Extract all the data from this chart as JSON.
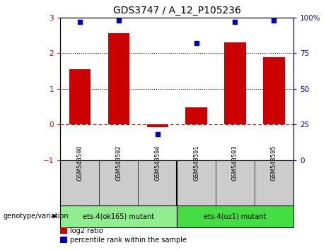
{
  "title": "GDS3747 / A_12_P105236",
  "categories": [
    "GSM543590",
    "GSM543592",
    "GSM543594",
    "GSM543591",
    "GSM543593",
    "GSM543595"
  ],
  "log2_ratio": [
    1.55,
    2.55,
    -0.08,
    0.48,
    2.3,
    1.88
  ],
  "percentile_rank": [
    97,
    98,
    18,
    82,
    97,
    98
  ],
  "ylim_left": [
    -1,
    3
  ],
  "ylim_right": [
    0,
    100
  ],
  "yticks_left": [
    -1,
    0,
    1,
    2,
    3
  ],
  "yticks_right": [
    0,
    25,
    50,
    75,
    100
  ],
  "hline_y": [
    1,
    2
  ],
  "zero_line_y": 0,
  "bar_color": "#cc0000",
  "dot_color": "#0000bb",
  "zero_line_color": "#cc0000",
  "group1_label": "ets-4(ok165) mutant",
  "group2_label": "ets-4(uz1) mutant",
  "group1_color": "#90ee90",
  "group2_color": "#44dd44",
  "xlabel_area_color": "#cccccc",
  "legend_red_label": "log2 ratio",
  "legend_blue_label": "percentile rank within the sample",
  "genotype_label": "genotype/variation",
  "title_fontsize": 10,
  "tick_fontsize": 7.5,
  "label_fontsize": 7,
  "cat_fontsize": 6
}
